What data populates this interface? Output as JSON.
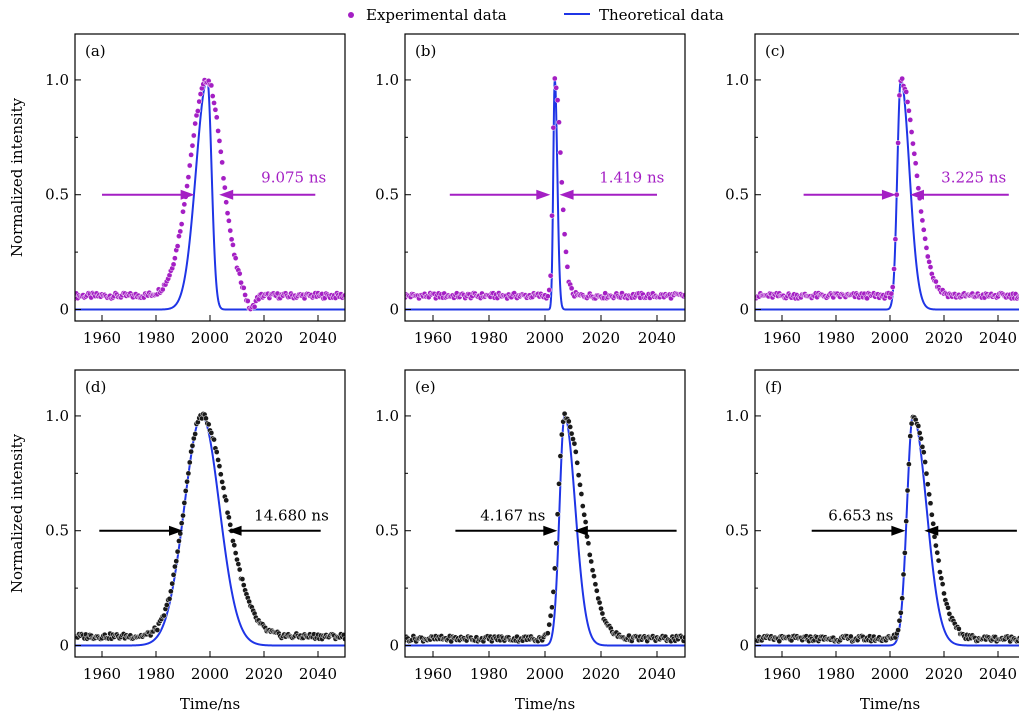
{
  "legend": {
    "experimental_label": "Experimental data",
    "theoretical_label": "Theoretical data"
  },
  "colors": {
    "theory": "#1f35e6",
    "experimental_top": "#a41fc4",
    "experimental_bottom": "#1a1a1a",
    "arrow_top": "#a41fc4",
    "arrow_bottom": "#000000"
  },
  "chart_data": [
    {
      "panel": "(a)",
      "type": "scatter",
      "xlabel": "",
      "ylabel": "Normalized intensity",
      "xlim": [
        1950,
        2050
      ],
      "ylim": [
        -0.05,
        1.2
      ],
      "xticks": [
        1960,
        1980,
        2000,
        2020,
        2040
      ],
      "yticks": [
        {
          "v": 0,
          "label": "0"
        },
        {
          "v": 0.5,
          "label": "0.5"
        },
        {
          "v": 1.0,
          "label": "1.0"
        }
      ],
      "fwhm_label": "9.075 ns",
      "fwhm_ns": 9.075,
      "experimental": {
        "baseline": 0.06,
        "peak_x": 1999,
        "rise_width": 6.5,
        "fall_width": 5.5,
        "dip": true
      },
      "theoretical": {
        "baseline": 0,
        "peak_x": 1999,
        "rise_width": 4.2,
        "fall_width": 1.6
      },
      "arrows": {
        "y": 0.5,
        "left_from": 1960,
        "left_to": 1994.3,
        "right_from": 2039,
        "right_to": 2003.4
      }
    },
    {
      "panel": "(b)",
      "type": "scatter",
      "xlabel": "",
      "ylabel": "",
      "xlim": [
        1950,
        2050
      ],
      "ylim": [
        -0.05,
        1.2
      ],
      "xticks": [
        1960,
        1980,
        2000,
        2020,
        2040
      ],
      "yticks": [
        {
          "v": 0,
          "label": "0"
        },
        {
          "v": 0.5,
          "label": "0.5"
        },
        {
          "v": 1.0,
          "label": "1.0"
        }
      ],
      "fwhm_label": "1.419 ns",
      "fwhm_ns": 1.419,
      "experimental": {
        "baseline": 0.06,
        "peak_x": 2003.5,
        "rise_width": 0.7,
        "fall_width": 2.2,
        "dip": false
      },
      "theoretical": {
        "baseline": 0,
        "peak_x": 2003.5,
        "rise_width": 0.55,
        "fall_width": 0.9
      },
      "arrows": {
        "y": 0.5,
        "left_from": 1966,
        "left_to": 2001.9,
        "right_from": 2040,
        "right_to": 2005.2
      }
    },
    {
      "panel": "(c)",
      "type": "scatter",
      "xlabel": "",
      "ylabel": "",
      "xlim": [
        1950,
        2050
      ],
      "ylim": [
        -0.05,
        1.2
      ],
      "xticks": [
        1960,
        1980,
        2000,
        2020,
        2040
      ],
      "yticks": [
        {
          "v": 0,
          "label": "0"
        },
        {
          "v": 0.5,
          "label": "0.5"
        },
        {
          "v": 1.0,
          "label": "1.0"
        }
      ],
      "fwhm_label": "3.225 ns",
      "fwhm_ns": 3.225,
      "experimental": {
        "baseline": 0.06,
        "peak_x": 2004,
        "rise_width": 1.2,
        "fall_width": 5.5,
        "dip": false
      },
      "theoretical": {
        "baseline": 0,
        "peak_x": 2004,
        "rise_width": 1.3,
        "fall_width": 3.2
      },
      "arrows": {
        "y": 0.5,
        "left_from": 1968,
        "left_to": 2002.2,
        "right_from": 2044,
        "right_to": 2007.4
      }
    },
    {
      "panel": "(d)",
      "type": "scatter",
      "xlabel": "Time/ns",
      "ylabel": "Normalized intensity",
      "xlim": [
        1950,
        2050
      ],
      "ylim": [
        -0.05,
        1.2
      ],
      "xticks": [
        1960,
        1980,
        2000,
        2020,
        2040
      ],
      "yticks": [
        {
          "v": 0,
          "label": "0"
        },
        {
          "v": 0.5,
          "label": "0.5"
        },
        {
          "v": 1.0,
          "label": "1.0"
        }
      ],
      "fwhm_label": "14.680 ns",
      "fwhm_ns": 14.68,
      "experimental": {
        "baseline": 0.04,
        "peak_x": 1997,
        "rise_width": 6.5,
        "fall_width": 9.0,
        "dip": false
      },
      "theoretical": {
        "baseline": 0,
        "peak_x": 1997,
        "rise_width": 6.5,
        "fall_width": 6.5
      },
      "arrows": {
        "y": 0.5,
        "left_from": 1959,
        "left_to": 1990,
        "right_from": 2041,
        "right_to": 2006.5
      }
    },
    {
      "panel": "(e)",
      "type": "scatter",
      "xlabel": "Time/ns",
      "ylabel": "",
      "xlim": [
        1950,
        2050
      ],
      "ylim": [
        -0.05,
        1.2
      ],
      "xticks": [
        1960,
        1980,
        2000,
        2020,
        2040
      ],
      "yticks": [
        {
          "v": 0,
          "label": "0"
        },
        {
          "v": 0.5,
          "label": "0.5"
        },
        {
          "v": 1.0,
          "label": "1.0"
        }
      ],
      "fwhm_label": "4.167 ns",
      "fwhm_ns": 4.167,
      "experimental": {
        "baseline": 0.03,
        "peak_x": 2007,
        "rise_width": 2.3,
        "fall_width": 6.5,
        "dip": false
      },
      "theoretical": {
        "baseline": 0,
        "peak_x": 2007,
        "rise_width": 1.8,
        "fall_width": 3.8
      },
      "arrows": {
        "y": 0.5,
        "left_from": 1968,
        "left_to": 2004.4,
        "right_from": 2047,
        "right_to": 2010.3
      }
    },
    {
      "panel": "(f)",
      "type": "scatter",
      "xlabel": "Time/ns",
      "ylabel": "",
      "xlim": [
        1950,
        2050
      ],
      "ylim": [
        -0.05,
        1.2
      ],
      "xticks": [
        1960,
        1980,
        2000,
        2020,
        2040
      ],
      "yticks": [
        {
          "v": 0,
          "label": "0"
        },
        {
          "v": 0.5,
          "label": "0.5"
        },
        {
          "v": 1.0,
          "label": "1.0"
        }
      ],
      "fwhm_label": "6.653 ns",
      "fwhm_ns": 6.653,
      "experimental": {
        "baseline": 0.03,
        "peak_x": 2008.5,
        "rise_width": 2.2,
        "fall_width": 6.5,
        "dip": false
      },
      "theoretical": {
        "baseline": 0,
        "peak_x": 2008.5,
        "rise_width": 2.2,
        "fall_width": 5.0
      },
      "arrows": {
        "y": 0.5,
        "left_from": 1971,
        "left_to": 2005.7,
        "right_from": 2047,
        "right_to": 2012.7
      }
    }
  ]
}
